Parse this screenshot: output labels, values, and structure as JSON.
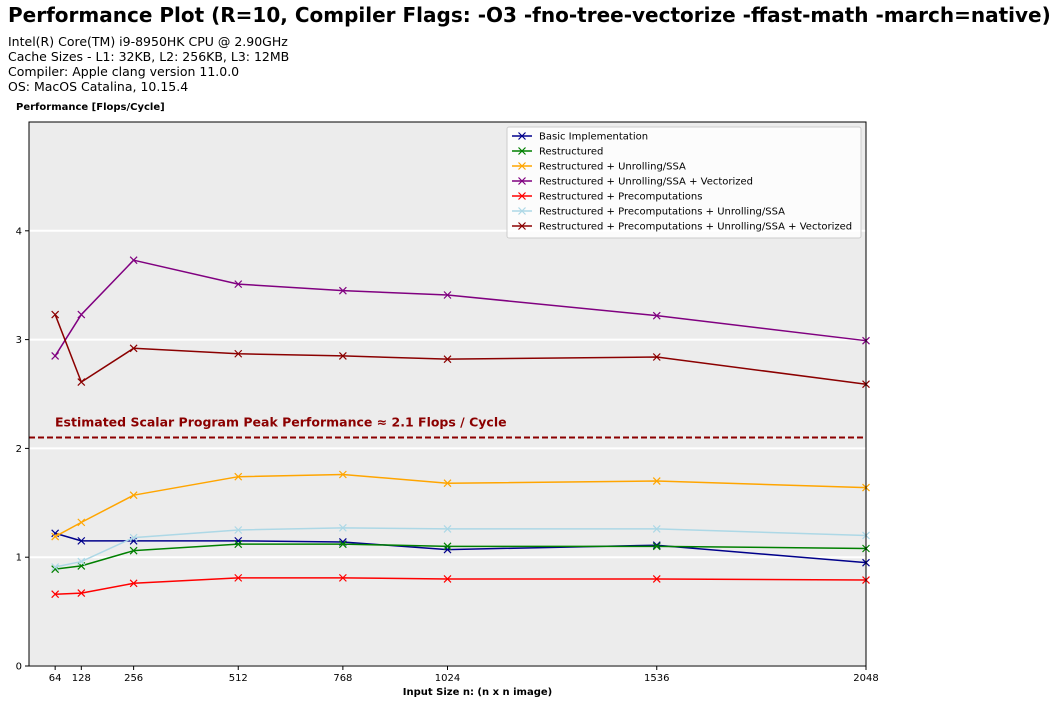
{
  "chart_data": {
    "type": "line",
    "title": "Performance Plot (R=10, Compiler Flags: -O3 -fno-tree-vectorize -ffast-math -march=native)",
    "info_lines": [
      "Intel(R) Core(TM) i9-8950HK CPU @ 2.90GHz",
      "Cache Sizes - L1: 32KB, L2: 256KB, L3: 12MB",
      "Compiler: Apple clang version 11.0.0",
      "OS: MacOS Catalina, 10.15.4"
    ],
    "ylabel": "Performance [Flops/Cycle]",
    "xlabel": "Input Size n: (n x n image)",
    "x": [
      64,
      128,
      256,
      512,
      768,
      1024,
      1536,
      2048
    ],
    "xlim": [
      0,
      2048
    ],
    "ylim": [
      0,
      5
    ],
    "xticks": [
      64,
      128,
      256,
      512,
      768,
      1024,
      1536,
      2048
    ],
    "yticks": [
      0,
      1,
      2,
      3,
      4
    ],
    "grid": "horizontal",
    "background_color": "#ececec",
    "legend_position": "top-right",
    "marker": "x",
    "series": [
      {
        "name": "Basic Implementation",
        "color": "#00008b",
        "values": [
          1.22,
          1.15,
          1.15,
          1.15,
          1.14,
          1.07,
          1.11,
          0.95
        ]
      },
      {
        "name": "Restructured",
        "color": "#008000",
        "values": [
          0.89,
          0.92,
          1.06,
          1.12,
          1.12,
          1.1,
          1.1,
          1.08
        ]
      },
      {
        "name": "Restructured + Unrolling/SSA",
        "color": "#ffa500",
        "values": [
          1.19,
          1.32,
          1.57,
          1.74,
          1.76,
          1.68,
          1.7,
          1.64
        ]
      },
      {
        "name": "Restructured + Unrolling/SSA + Vectorized",
        "color": "#800080",
        "values": [
          2.85,
          3.23,
          3.73,
          3.51,
          3.45,
          3.41,
          3.22,
          2.99
        ]
      },
      {
        "name": "Restructured + Precomputations",
        "color": "#ff0000",
        "values": [
          0.66,
          0.67,
          0.76,
          0.81,
          0.81,
          0.8,
          0.8,
          0.79
        ]
      },
      {
        "name": "Restructured + Precomputations +  Unrolling/SSA",
        "color": "#add8e6",
        "values": [
          0.91,
          0.96,
          1.18,
          1.25,
          1.27,
          1.26,
          1.26,
          1.2
        ]
      },
      {
        "name": "Restructured + Precomputations +  Unrolling/SSA + Vectorized",
        "color": "#8b0000",
        "values": [
          3.23,
          2.61,
          2.92,
          2.87,
          2.85,
          2.82,
          2.84,
          2.59
        ]
      }
    ],
    "reference_line": {
      "y": 2.1,
      "color": "#8b0000",
      "style": "dashed",
      "label": "Estimated Scalar Program Peak Performance ≈ 2.1 Flops / Cycle"
    }
  }
}
